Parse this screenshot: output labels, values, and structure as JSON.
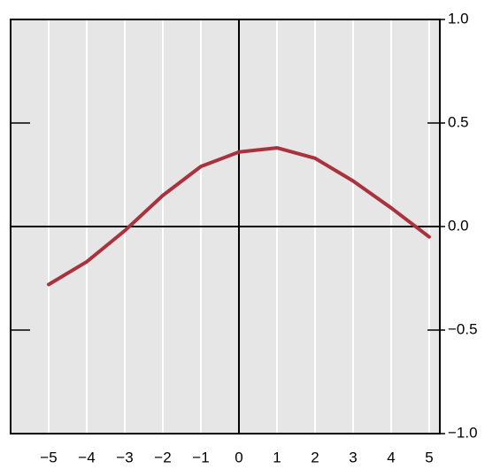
{
  "chart_data": {
    "type": "line",
    "x": [
      -5,
      -4,
      -3,
      -2,
      -1,
      0,
      1,
      2,
      3,
      4,
      5
    ],
    "series": [
      {
        "color": "#a8323e",
        "values": [
          -0.28,
          -0.17,
          -0.02,
          0.15,
          0.29,
          0.36,
          0.38,
          0.33,
          0.22,
          0.09,
          -0.05
        ]
      }
    ],
    "xlim": [
      -6,
      5.28
    ],
    "ylim": [
      -1,
      1
    ],
    "xticks": [
      {
        "value": -5,
        "label": "−5"
      },
      {
        "value": -4,
        "label": "−4"
      },
      {
        "value": -3,
        "label": "−3"
      },
      {
        "value": -2,
        "label": "−2"
      },
      {
        "value": -1,
        "label": "−1"
      },
      0,
      1,
      2,
      3,
      4,
      5
    ],
    "yticks": [
      {
        "value": 1,
        "label": "1.0"
      },
      0.5,
      {
        "value": 0,
        "label": "0.0"
      },
      {
        "value": -0.5,
        "label": "−0.5"
      },
      {
        "value": -1,
        "label": "−1.0"
      }
    ],
    "grid": true,
    "y_axis_side": "right"
  }
}
